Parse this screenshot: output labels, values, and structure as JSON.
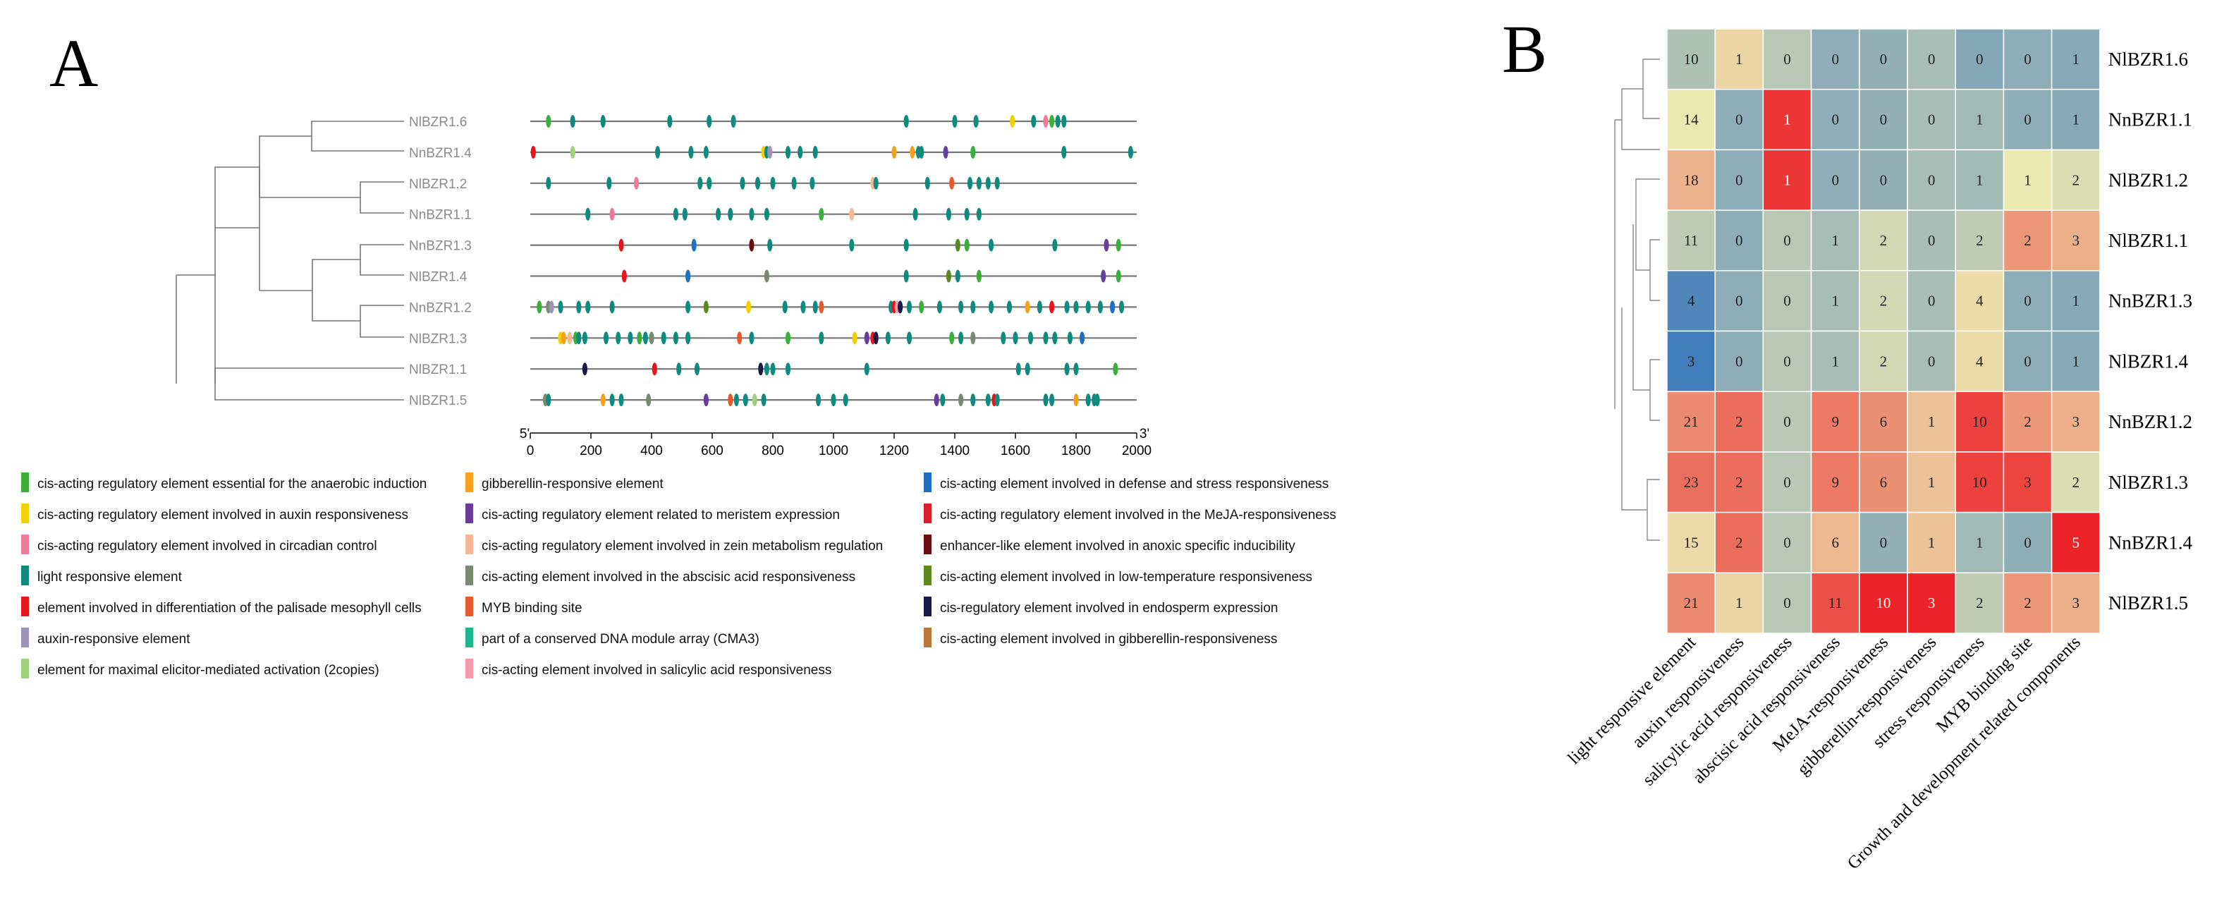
{
  "panel_labels": {
    "a": "A",
    "b": "B"
  },
  "chart_data": [
    {
      "type": "promoter-element-map",
      "panel": "A",
      "genes": [
        "NlBZR1.6",
        "NnBZR1.4",
        "NlBZR1.2",
        "NnBZR1.1",
        "NnBZR1.3",
        "NlBZR1.4",
        "NnBZR1.2",
        "NlBZR1.3",
        "NlBZR1.1",
        "NlBZR1.5"
      ],
      "xlim": [
        0,
        2000
      ],
      "x_ticks": [
        0,
        200,
        400,
        600,
        800,
        1000,
        1200,
        1400,
        1600,
        1800,
        2000
      ],
      "x_start_label": "5'",
      "x_end_label": "3'",
      "legend": [
        {
          "name": "cis-acting regulatory element essential for the anaerobic induction",
          "color": "#3aaf3a"
        },
        {
          "name": "cis-acting regulatory element involved in auxin responsiveness",
          "color": "#f5d000"
        },
        {
          "name": "cis-acting regulatory element involved in circadian control",
          "color": "#f07a9a"
        },
        {
          "name": "light responsive element",
          "color": "#0f8a7e"
        },
        {
          "name": "element involved in differentiation of the palisade mesophyll cells",
          "color": "#e8141c"
        },
        {
          "name": "auxin-responsive element",
          "color": "#9b93b8"
        },
        {
          "name": "element for maximal elicitor-mediated activation (2copies)",
          "color": "#9ed27a"
        },
        {
          "name": "gibberellin-responsive element",
          "color": "#f4a21b"
        },
        {
          "name": "cis-acting regulatory element related to meristem expression",
          "color": "#6a3d9a"
        },
        {
          "name": "cis-acting regulatory element involved in zein metabolism regulation",
          "color": "#f6b892"
        },
        {
          "name": "cis-acting element involved in the abscisic acid responsiveness",
          "color": "#7a8a70"
        },
        {
          "name": "MYB binding site",
          "color": "#e8592e"
        },
        {
          "name": "part of a conserved DNA module array (CMA3)",
          "color": "#1fb58a"
        },
        {
          "name": "cis-acting element involved in salicylic acid responsiveness",
          "color": "#f59aa8"
        },
        {
          "name": "cis-acting element involved in defense and stress responsiveness",
          "color": "#1f6fc2"
        },
        {
          "name": "cis-acting regulatory element involved in the MeJA-responsiveness",
          "color": "#d6202a"
        },
        {
          "name": "enhancer-like element involved in anoxic specific inducibility",
          "color": "#6b0d12"
        },
        {
          "name": "cis-acting element involved in low-temperature responsiveness",
          "color": "#5a8a1e"
        },
        {
          "name": "cis-regulatory element involved in endosperm expression",
          "color": "#1a1a4a"
        },
        {
          "name": "cis-acting element involved in gibberellin-responsiveness",
          "color": "#b87838"
        }
      ],
      "elements": [
        [
          [
            60,
            0
          ],
          [
            140,
            3
          ],
          [
            240,
            3
          ],
          [
            460,
            3
          ],
          [
            590,
            3
          ],
          [
            670,
            3
          ],
          [
            1240,
            3
          ],
          [
            1400,
            3
          ],
          [
            1470,
            3
          ],
          [
            1590,
            1
          ],
          [
            1660,
            3
          ],
          [
            1700,
            2
          ],
          [
            1720,
            0
          ],
          [
            1740,
            3
          ],
          [
            1760,
            3
          ]
        ],
        [
          [
            10,
            4
          ],
          [
            140,
            6
          ],
          [
            420,
            3
          ],
          [
            530,
            3
          ],
          [
            580,
            3
          ],
          [
            770,
            1
          ],
          [
            780,
            3
          ],
          [
            790,
            5
          ],
          [
            850,
            3
          ],
          [
            890,
            3
          ],
          [
            940,
            3
          ],
          [
            1200,
            7
          ],
          [
            1260,
            7
          ],
          [
            1280,
            3
          ],
          [
            1290,
            3
          ],
          [
            1370,
            8
          ],
          [
            1460,
            0
          ],
          [
            1760,
            3
          ],
          [
            1980,
            3
          ]
        ],
        [
          [
            60,
            3
          ],
          [
            260,
            3
          ],
          [
            350,
            2
          ],
          [
            560,
            3
          ],
          [
            590,
            3
          ],
          [
            700,
            3
          ],
          [
            750,
            3
          ],
          [
            800,
            3
          ],
          [
            870,
            3
          ],
          [
            930,
            3
          ],
          [
            1130,
            9
          ],
          [
            1140,
            3
          ],
          [
            1310,
            3
          ],
          [
            1390,
            11
          ],
          [
            1450,
            3
          ],
          [
            1480,
            3
          ],
          [
            1510,
            3
          ],
          [
            1540,
            3
          ]
        ],
        [
          [
            190,
            3
          ],
          [
            270,
            2
          ],
          [
            480,
            3
          ],
          [
            510,
            3
          ],
          [
            620,
            3
          ],
          [
            660,
            3
          ],
          [
            730,
            3
          ],
          [
            780,
            3
          ],
          [
            960,
            0
          ],
          [
            1060,
            9
          ],
          [
            1270,
            3
          ],
          [
            1380,
            3
          ],
          [
            1440,
            3
          ],
          [
            1480,
            3
          ]
        ],
        [
          [
            300,
            4
          ],
          [
            540,
            14
          ],
          [
            730,
            16
          ],
          [
            790,
            3
          ],
          [
            1060,
            3
          ],
          [
            1240,
            3
          ],
          [
            1410,
            17
          ],
          [
            1440,
            0
          ],
          [
            1520,
            3
          ],
          [
            1730,
            3
          ],
          [
            1900,
            8
          ],
          [
            1940,
            0
          ]
        ],
        [
          [
            310,
            4
          ],
          [
            520,
            14
          ],
          [
            780,
            10
          ],
          [
            1240,
            3
          ],
          [
            1380,
            17
          ],
          [
            1410,
            3
          ],
          [
            1480,
            0
          ],
          [
            1890,
            8
          ],
          [
            1940,
            0
          ]
        ],
        [
          [
            30,
            0
          ],
          [
            60,
            10
          ],
          [
            70,
            5
          ],
          [
            100,
            3
          ],
          [
            160,
            3
          ],
          [
            190,
            3
          ],
          [
            270,
            3
          ],
          [
            520,
            3
          ],
          [
            580,
            17
          ],
          [
            720,
            1
          ],
          [
            840,
            3
          ],
          [
            900,
            3
          ],
          [
            940,
            3
          ],
          [
            960,
            11
          ],
          [
            1190,
            3
          ],
          [
            1200,
            4
          ],
          [
            1210,
            13
          ],
          [
            1220,
            18
          ],
          [
            1250,
            3
          ],
          [
            1290,
            0
          ],
          [
            1350,
            3
          ],
          [
            1420,
            3
          ],
          [
            1460,
            3
          ],
          [
            1520,
            3
          ],
          [
            1580,
            3
          ],
          [
            1640,
            7
          ],
          [
            1680,
            3
          ],
          [
            1720,
            4
          ],
          [
            1770,
            3
          ],
          [
            1800,
            3
          ],
          [
            1840,
            3
          ],
          [
            1880,
            3
          ],
          [
            1920,
            14
          ],
          [
            1950,
            3
          ]
        ],
        [
          [
            100,
            1
          ],
          [
            110,
            7
          ],
          [
            130,
            9
          ],
          [
            150,
            0
          ],
          [
            160,
            3
          ],
          [
            180,
            3
          ],
          [
            250,
            3
          ],
          [
            290,
            3
          ],
          [
            330,
            3
          ],
          [
            360,
            0
          ],
          [
            380,
            3
          ],
          [
            400,
            10
          ],
          [
            440,
            3
          ],
          [
            480,
            3
          ],
          [
            520,
            3
          ],
          [
            690,
            11
          ],
          [
            730,
            3
          ],
          [
            850,
            0
          ],
          [
            960,
            3
          ],
          [
            1070,
            1
          ],
          [
            1110,
            8
          ],
          [
            1130,
            4
          ],
          [
            1140,
            18
          ],
          [
            1180,
            3
          ],
          [
            1250,
            3
          ],
          [
            1390,
            0
          ],
          [
            1420,
            3
          ],
          [
            1460,
            10
          ],
          [
            1560,
            3
          ],
          [
            1600,
            3
          ],
          [
            1650,
            3
          ],
          [
            1700,
            3
          ],
          [
            1730,
            3
          ],
          [
            1780,
            3
          ],
          [
            1820,
            14
          ]
        ],
        [
          [
            180,
            18
          ],
          [
            410,
            4
          ],
          [
            490,
            3
          ],
          [
            550,
            3
          ],
          [
            760,
            18
          ],
          [
            780,
            3
          ],
          [
            800,
            3
          ],
          [
            850,
            3
          ],
          [
            1110,
            3
          ],
          [
            1610,
            3
          ],
          [
            1640,
            3
          ],
          [
            1770,
            3
          ],
          [
            1800,
            3
          ],
          [
            1930,
            0
          ]
        ],
        [
          [
            50,
            10
          ],
          [
            60,
            3
          ],
          [
            240,
            7
          ],
          [
            270,
            3
          ],
          [
            300,
            3
          ],
          [
            390,
            10
          ],
          [
            580,
            8
          ],
          [
            660,
            11
          ],
          [
            680,
            3
          ],
          [
            710,
            3
          ],
          [
            740,
            6
          ],
          [
            770,
            3
          ],
          [
            950,
            3
          ],
          [
            1000,
            3
          ],
          [
            1040,
            3
          ],
          [
            1340,
            8
          ],
          [
            1360,
            3
          ],
          [
            1420,
            10
          ],
          [
            1460,
            3
          ],
          [
            1510,
            3
          ],
          [
            1530,
            4
          ],
          [
            1540,
            3
          ],
          [
            1700,
            3
          ],
          [
            1720,
            3
          ],
          [
            1800,
            7
          ],
          [
            1840,
            3
          ],
          [
            1860,
            3
          ],
          [
            1870,
            3
          ]
        ]
      ]
    },
    {
      "type": "heatmap",
      "panel": "B",
      "rows": [
        "NlBZR1.6",
        "NnBZR1.1",
        "NlBZR1.2",
        "NlBZR1.1",
        "NnBZR1.3",
        "NlBZR1.4",
        "NnBZR1.2",
        "NlBZR1.3",
        "NnBZR1.4",
        "NlBZR1.5"
      ],
      "columns": [
        "light responsive element",
        "auxin responsiveness",
        "salicylic acid responsiveness",
        "abscisic acid responsiveness",
        "MeJA-responsiveness",
        "gibberellin-responsiveness",
        "stress responsiveness",
        "MYB binding site",
        "Growth and development related components"
      ],
      "values": [
        [
          10,
          1,
          0,
          0,
          0,
          0,
          0,
          0,
          1
        ],
        [
          14,
          0,
          1,
          0,
          0,
          0,
          1,
          0,
          1
        ],
        [
          18,
          0,
          1,
          0,
          0,
          0,
          1,
          1,
          2
        ],
        [
          11,
          0,
          0,
          1,
          2,
          0,
          2,
          2,
          3
        ],
        [
          4,
          0,
          0,
          1,
          2,
          0,
          4,
          0,
          1
        ],
        [
          3,
          0,
          0,
          1,
          2,
          0,
          4,
          0,
          1
        ],
        [
          21,
          2,
          0,
          9,
          6,
          1,
          10,
          2,
          3
        ],
        [
          23,
          2,
          0,
          9,
          6,
          1,
          10,
          3,
          2
        ],
        [
          15,
          2,
          0,
          6,
          0,
          1,
          1,
          0,
          5
        ],
        [
          21,
          1,
          0,
          11,
          10,
          3,
          2,
          2,
          3
        ]
      ]
    }
  ]
}
